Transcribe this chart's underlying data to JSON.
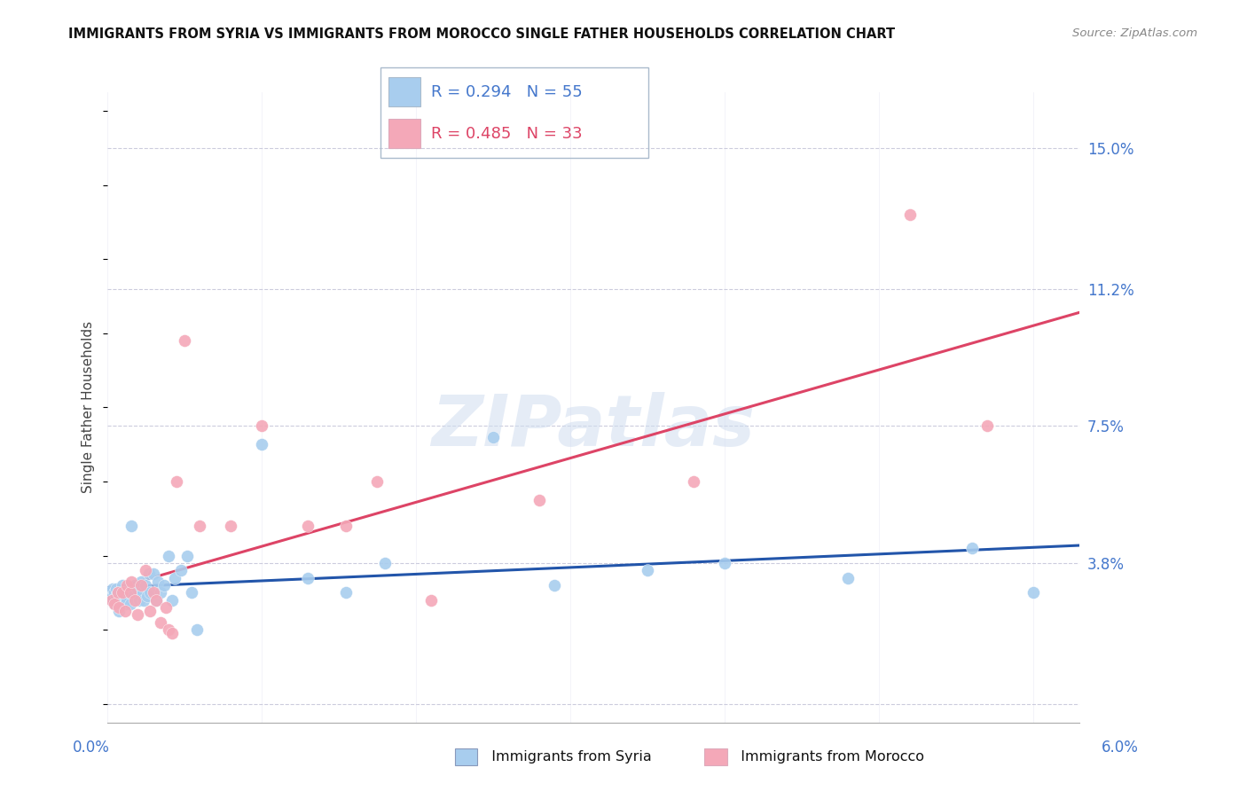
{
  "title": "IMMIGRANTS FROM SYRIA VS IMMIGRANTS FROM MOROCCO SINGLE FATHER HOUSEHOLDS CORRELATION CHART",
  "source": "Source: ZipAtlas.com",
  "ylabel": "Single Father Households",
  "ytick_vals": [
    0.0,
    0.038,
    0.075,
    0.112,
    0.15
  ],
  "ytick_labels": [
    "",
    "3.8%",
    "7.5%",
    "11.2%",
    "15.0%"
  ],
  "xlim": [
    0.0,
    0.063
  ],
  "ylim": [
    -0.005,
    0.165
  ],
  "legend_syria_R": "0.294",
  "legend_syria_N": "55",
  "legend_morocco_R": "0.485",
  "legend_morocco_N": "33",
  "syria_color": "#A8CDEE",
  "morocco_color": "#F4A8B8",
  "syria_line_color": "#2255AA",
  "morocco_line_color": "#DD4466",
  "watermark_text": "ZIPatlas",
  "syria_x": [
    0.0002,
    0.0003,
    0.0004,
    0.0004,
    0.0005,
    0.0005,
    0.0006,
    0.0006,
    0.0007,
    0.0007,
    0.0008,
    0.0009,
    0.001,
    0.001,
    0.0011,
    0.0012,
    0.0012,
    0.0013,
    0.0014,
    0.0015,
    0.0016,
    0.0017,
    0.0018,
    0.002,
    0.0021,
    0.0022,
    0.0023,
    0.0024,
    0.0025,
    0.0026,
    0.0027,
    0.0028,
    0.003,
    0.0032,
    0.0033,
    0.0035,
    0.0037,
    0.004,
    0.0042,
    0.0044,
    0.0048,
    0.0052,
    0.0055,
    0.0058,
    0.01,
    0.013,
    0.0155,
    0.018,
    0.025,
    0.029,
    0.035,
    0.04,
    0.048,
    0.056,
    0.06
  ],
  "syria_y": [
    0.03,
    0.028,
    0.029,
    0.031,
    0.027,
    0.03,
    0.029,
    0.031,
    0.028,
    0.03,
    0.025,
    0.029,
    0.028,
    0.032,
    0.03,
    0.027,
    0.029,
    0.028,
    0.03,
    0.027,
    0.048,
    0.03,
    0.032,
    0.031,
    0.028,
    0.033,
    0.03,
    0.028,
    0.032,
    0.029,
    0.035,
    0.03,
    0.035,
    0.028,
    0.033,
    0.03,
    0.032,
    0.04,
    0.028,
    0.034,
    0.036,
    0.04,
    0.03,
    0.02,
    0.07,
    0.034,
    0.03,
    0.038,
    0.072,
    0.032,
    0.036,
    0.038,
    0.034,
    0.042,
    0.03
  ],
  "morocco_x": [
    0.0003,
    0.0005,
    0.0007,
    0.0008,
    0.001,
    0.0012,
    0.0013,
    0.0015,
    0.0016,
    0.0018,
    0.002,
    0.0022,
    0.0025,
    0.0028,
    0.003,
    0.0032,
    0.0035,
    0.0038,
    0.004,
    0.0042,
    0.0045,
    0.005,
    0.006,
    0.008,
    0.01,
    0.013,
    0.0155,
    0.0175,
    0.021,
    0.028,
    0.038,
    0.052,
    0.057
  ],
  "morocco_y": [
    0.028,
    0.027,
    0.03,
    0.026,
    0.03,
    0.025,
    0.032,
    0.03,
    0.033,
    0.028,
    0.024,
    0.032,
    0.036,
    0.025,
    0.03,
    0.028,
    0.022,
    0.026,
    0.02,
    0.019,
    0.06,
    0.098,
    0.048,
    0.048,
    0.075,
    0.048,
    0.048,
    0.06,
    0.028,
    0.055,
    0.06,
    0.132,
    0.075
  ]
}
